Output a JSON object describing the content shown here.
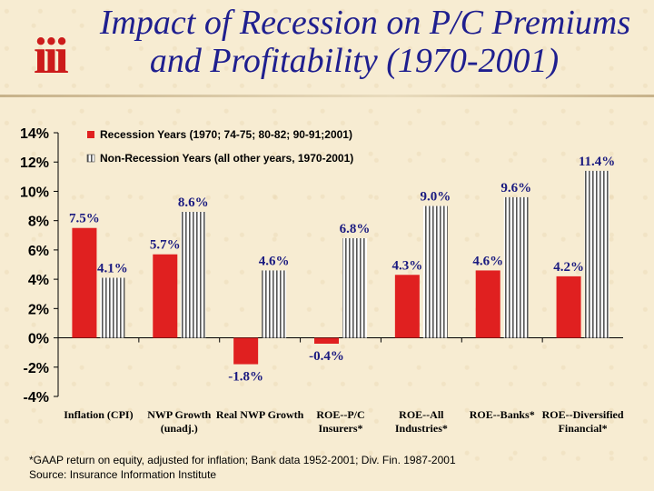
{
  "title": {
    "line1": "Impact of Recession on P/C Premiums",
    "line2": "and Profitability (1970-2001)"
  },
  "logo_text": "iii",
  "footnote": {
    "line1": "*GAAP return on equity, adjusted for inflation; Bank data 1952-2001; Div. Fin. 1987-2001",
    "line2": "Source: Insurance Information Institute"
  },
  "colors": {
    "recession": "#e02020",
    "non_recession_fill": "#ffffff",
    "non_recession_stripe": "#555555",
    "value_label": "#1a1a80",
    "title": "#1f1f8f"
  },
  "chart_data": {
    "type": "bar",
    "categories": [
      "Inflation (CPI)",
      "NWP Growth (unadj.)",
      "Real NWP Growth",
      "ROE--P/C Insurers*",
      "ROE--All Industries*",
      "ROE--Banks*",
      "ROE--Diversified Financial*"
    ],
    "series": [
      {
        "name": "Recession Years (1970; 74-75; 80-82; 90-91;2001)",
        "values": [
          7.5,
          5.7,
          -1.8,
          -0.4,
          4.3,
          4.6,
          4.2
        ],
        "labels": [
          "7.5%",
          "5.7%",
          "-1.8%",
          "-0.4%",
          "4.3%",
          "4.6%",
          "4.2%"
        ]
      },
      {
        "name": "Non-Recession Years (all other years, 1970-2001)",
        "values": [
          4.1,
          8.6,
          4.6,
          6.8,
          9.0,
          9.6,
          11.4
        ],
        "labels": [
          "4.1%",
          "8.6%",
          "4.6%",
          "6.8%",
          "9.0%",
          "9.6%",
          "11.4%"
        ]
      }
    ],
    "y_ticks": [
      "-4%",
      "-2%",
      "0%",
      "2%",
      "4%",
      "6%",
      "8%",
      "10%",
      "12%",
      "14%"
    ],
    "ylim": [
      -4,
      14
    ],
    "legend_position": "top-left"
  }
}
